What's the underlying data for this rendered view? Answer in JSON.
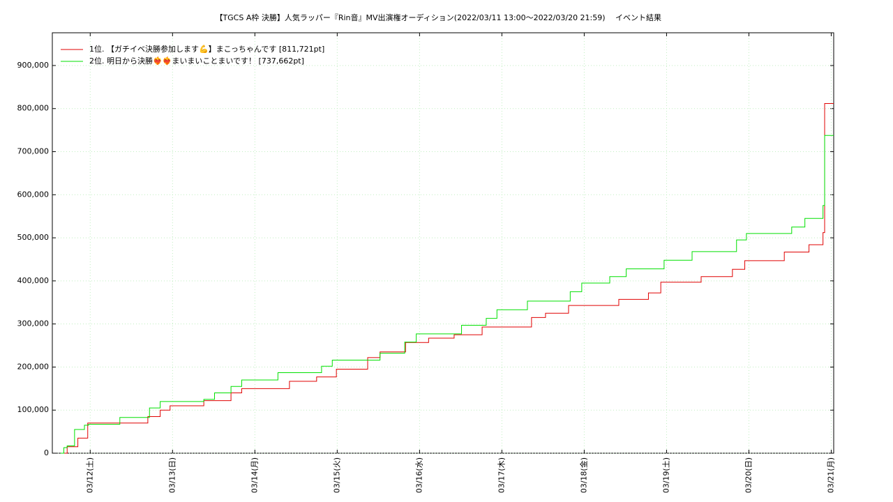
{
  "chart_data": {
    "type": "step",
    "title": "【TGCS A枠 決勝】人気ラッパー『Rin音』MV出演権オーディション(2022/03/11 13:00〜2022/03/20 21:59)",
    "subtitle": "イベント結果",
    "legend": "upper left",
    "grid": true,
    "xlim": [
      11.54,
      21.03
    ],
    "xticks": [
      {
        "value": 12,
        "label": "03/12(土)"
      },
      {
        "value": 13,
        "label": "03/13(日)"
      },
      {
        "value": 14,
        "label": "03/14(月)"
      },
      {
        "value": 15,
        "label": "03/15(火)"
      },
      {
        "value": 16,
        "label": "03/16(水)"
      },
      {
        "value": 17,
        "label": "03/17(木)"
      },
      {
        "value": 18,
        "label": "03/18(金)"
      },
      {
        "value": 19,
        "label": "03/19(土)"
      },
      {
        "value": 20,
        "label": "03/20(日)"
      },
      {
        "value": 21,
        "label": "03/21(月)"
      }
    ],
    "ylim": [
      0,
      976000
    ],
    "yticks": [
      0,
      {
        "value": 100000,
        "label": "100,000"
      },
      {
        "value": 200000,
        "label": "200,000"
      },
      {
        "value": 300000,
        "label": "300,000"
      },
      {
        "value": 400000,
        "label": "400,000"
      },
      {
        "value": 500000,
        "label": "500,000"
      },
      {
        "value": 600000,
        "label": "600,000"
      },
      {
        "value": 700000,
        "label": "700,000"
      },
      {
        "value": 800000,
        "label": "800,000"
      },
      {
        "value": 900000,
        "label": "900,000"
      }
    ],
    "series": [
      {
        "name": "1位. 【ガチイベ決勝参加します💪】まこっちゃんです [811,721pt]",
        "color": "#e00000",
        "x": [
          11.66,
          11.72,
          11.85,
          11.97,
          12.7,
          12.85,
          12.97,
          13.38,
          13.71,
          13.84,
          14.42,
          14.75,
          14.99,
          15.37,
          15.52,
          15.83,
          16.11,
          16.42,
          16.76,
          17.36,
          17.53,
          17.81,
          18.42,
          18.78,
          18.93,
          19.42,
          19.8,
          19.95,
          20.43,
          20.73,
          20.9,
          20.92,
          21.03
        ],
        "values": [
          0,
          15000,
          35000,
          70000,
          85000,
          100000,
          110000,
          122000,
          140000,
          150000,
          167000,
          177000,
          195000,
          222000,
          235000,
          257000,
          267000,
          275000,
          293000,
          315000,
          325000,
          343000,
          357000,
          372000,
          397000,
          410000,
          427000,
          447000,
          467000,
          484000,
          512000,
          811721,
          811721
        ]
      },
      {
        "name": "2位. 明日から決勝❤️‍🔥❤️‍🔥まいまいことまいです！ [737,662pt]",
        "color": "#00e000",
        "x": [
          11.64,
          11.68,
          11.72,
          11.81,
          11.93,
          11.98,
          12.36,
          12.72,
          12.85,
          13.38,
          13.51,
          13.71,
          13.84,
          14.28,
          14.81,
          14.94,
          15.52,
          15.82,
          15.96,
          16.51,
          16.81,
          16.94,
          17.31,
          17.83,
          17.97,
          18.31,
          18.51,
          18.97,
          19.31,
          19.85,
          19.97,
          20.52,
          20.68,
          20.9,
          20.92,
          21.03
        ],
        "values": [
          0,
          13000,
          17000,
          55000,
          65000,
          67000,
          83000,
          105000,
          120000,
          125000,
          140000,
          155000,
          170000,
          187000,
          202000,
          216000,
          232000,
          258000,
          277000,
          297000,
          313000,
          333000,
          353000,
          375000,
          395000,
          410000,
          428000,
          448000,
          468000,
          495000,
          510000,
          525000,
          545000,
          575000,
          737662,
          737662
        ]
      }
    ]
  }
}
